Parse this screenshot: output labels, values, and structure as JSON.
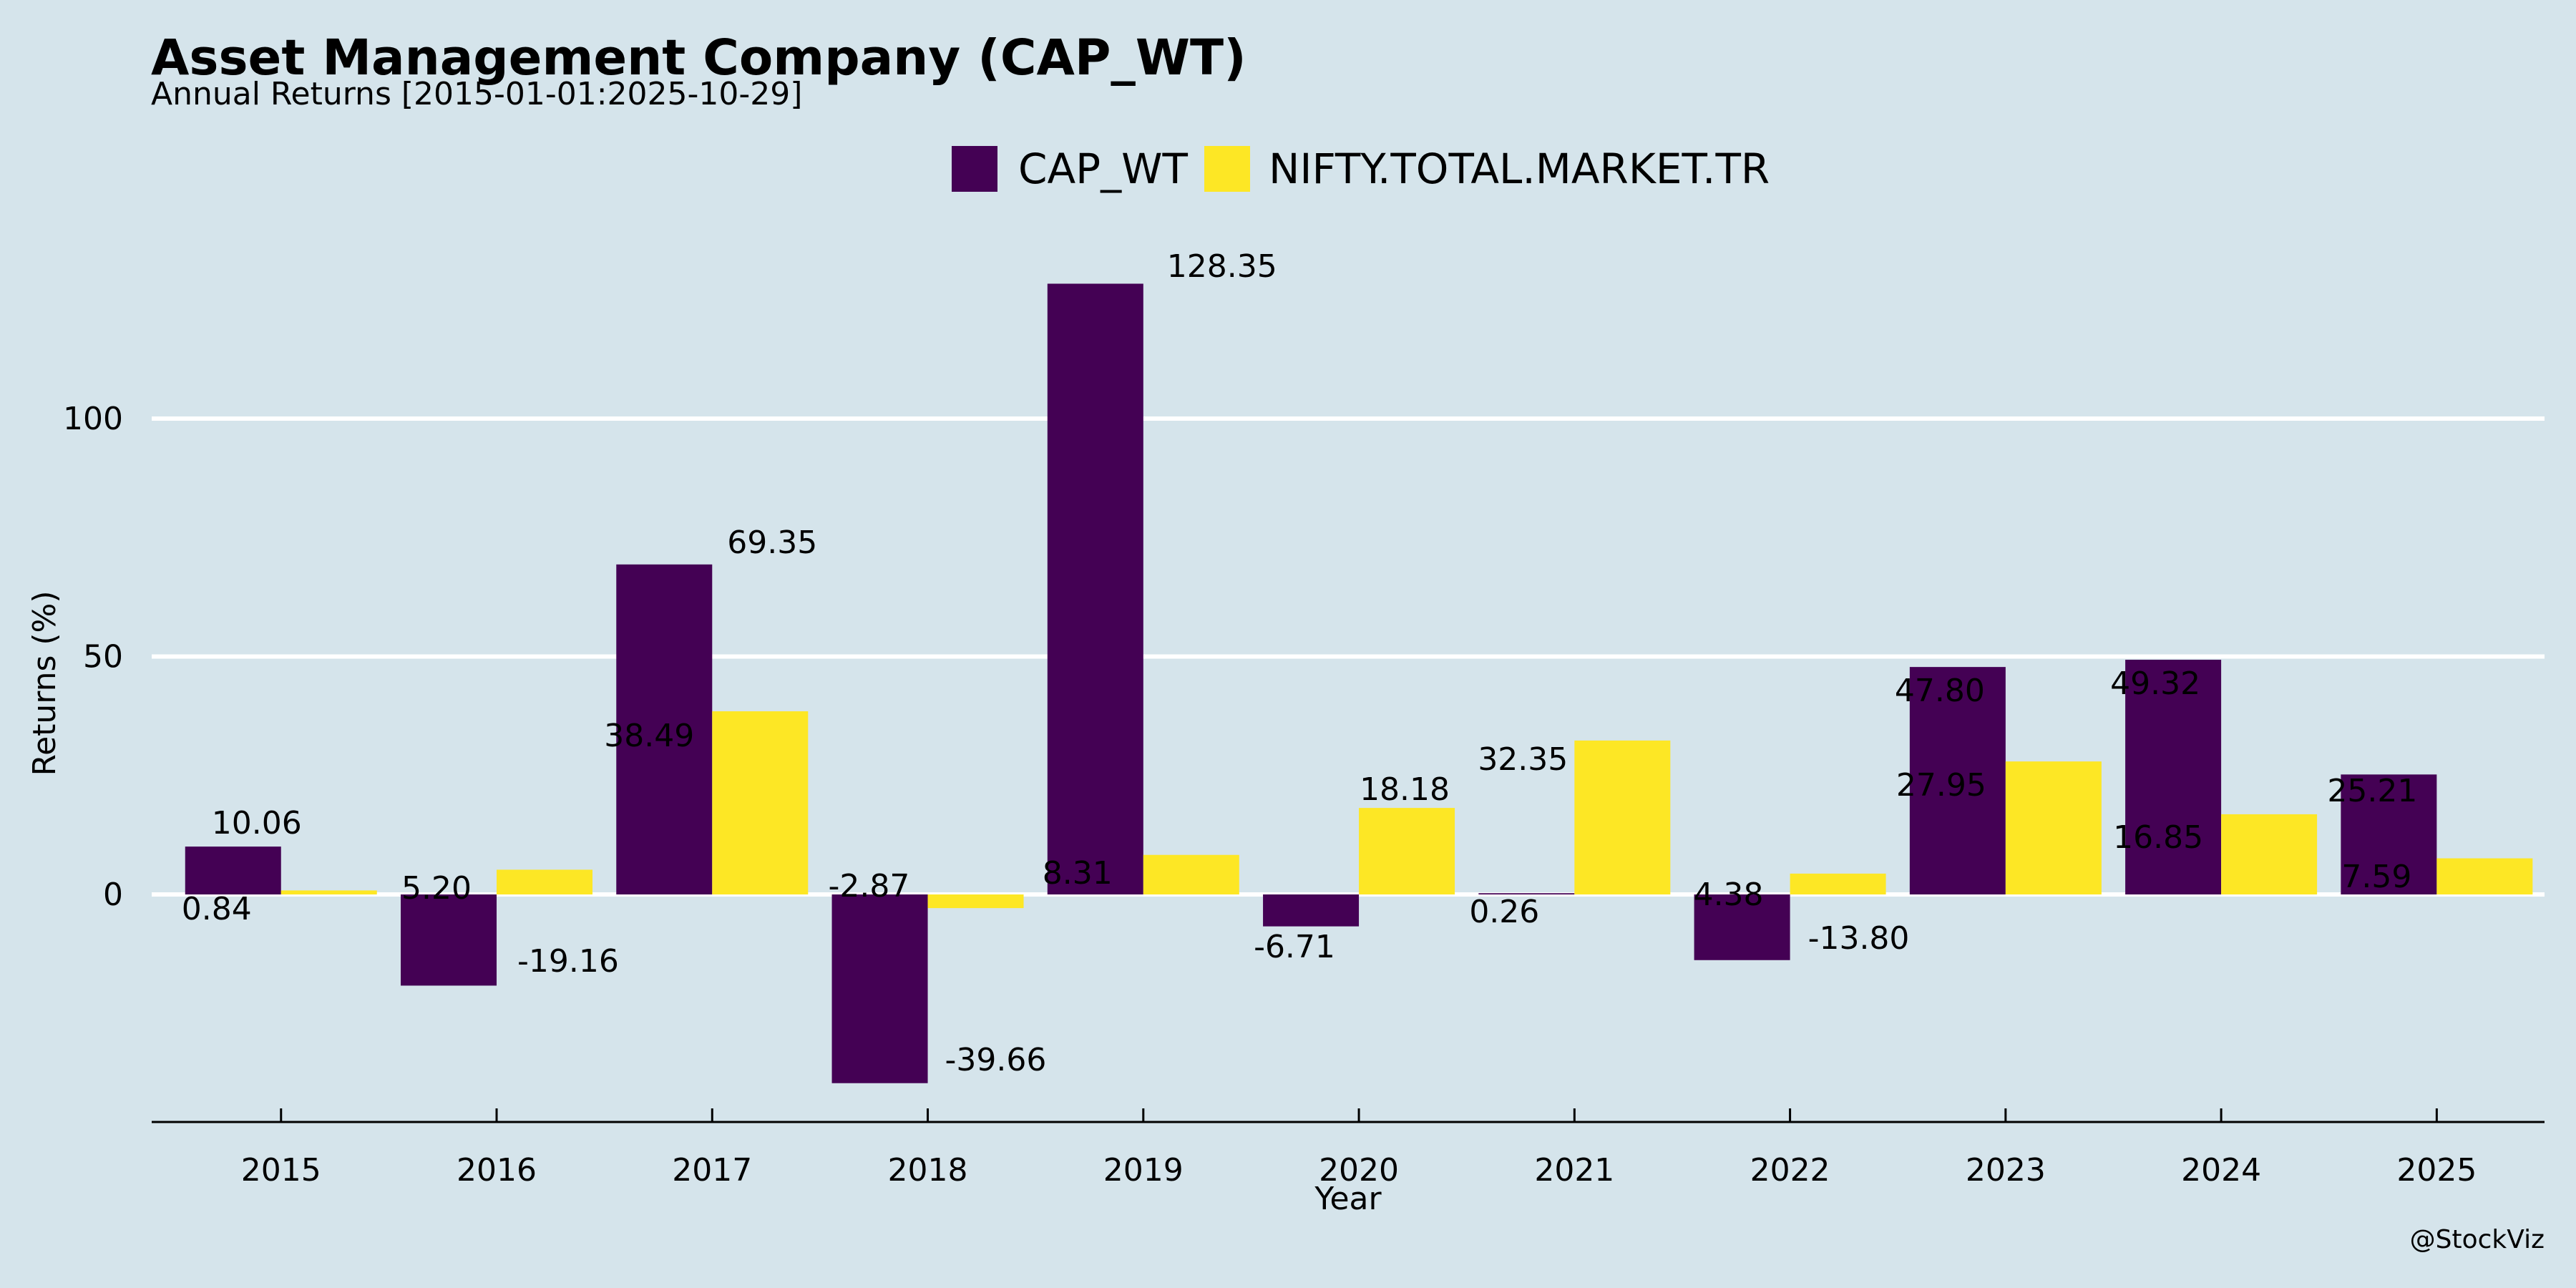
{
  "chart_data": {
    "type": "bar",
    "title": "Asset Management Company (CAP_WT)",
    "subtitle": "Annual Returns [2015-01-01:2025-10-29]",
    "xlabel": "Year",
    "ylabel": "Returns (%)",
    "categories": [
      "2015",
      "2016",
      "2017",
      "2018",
      "2019",
      "2020",
      "2021",
      "2022",
      "2023",
      "2024",
      "2025"
    ],
    "series": [
      {
        "name": "CAP_WT",
        "color": "#440154",
        "values": [
          10.06,
          -19.16,
          69.35,
          -39.66,
          128.35,
          -6.71,
          0.26,
          -13.8,
          47.8,
          49.32,
          25.21
        ],
        "labels": [
          "10.06",
          "-19.16",
          "69.35",
          "-39.66",
          "128.35",
          "-6.71",
          "0.26",
          "-13.80",
          "47.80",
          "49.32",
          "25.21"
        ]
      },
      {
        "name": "NIFTY.TOTAL.MARKET.TR",
        "color": "#fde725",
        "values": [
          0.84,
          5.2,
          38.49,
          -2.87,
          8.31,
          18.18,
          32.35,
          4.38,
          27.95,
          16.85,
          7.59
        ],
        "labels": [
          "0.84",
          "5.20",
          "38.49",
          "-2.87",
          "8.31",
          "18.18",
          "32.35",
          "4.38",
          "27.95",
          "16.85",
          "7.59"
        ]
      }
    ],
    "yticks": [
      0,
      50,
      100
    ],
    "ytick_labels": [
      "0",
      "50",
      "100"
    ],
    "ylim": [
      -48,
      135
    ],
    "grid": "horizontal",
    "legend_position": "top-center",
    "background": "#d5e4eb",
    "watermark": "@StockViz"
  }
}
